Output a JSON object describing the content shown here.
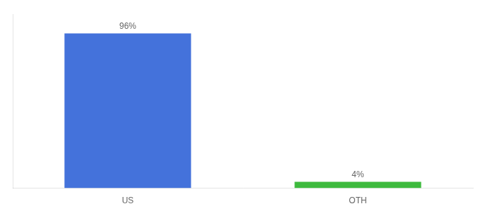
{
  "chart_data": {
    "type": "bar",
    "categories": [
      "US",
      "OTH"
    ],
    "values": [
      96,
      4
    ],
    "value_labels": [
      "96%",
      "4%"
    ],
    "colors": [
      "#4472db",
      "#3dba3d"
    ],
    "ylim": [
      0,
      108
    ],
    "grid": false,
    "tick_labels": "x",
    "data_labels": true
  }
}
